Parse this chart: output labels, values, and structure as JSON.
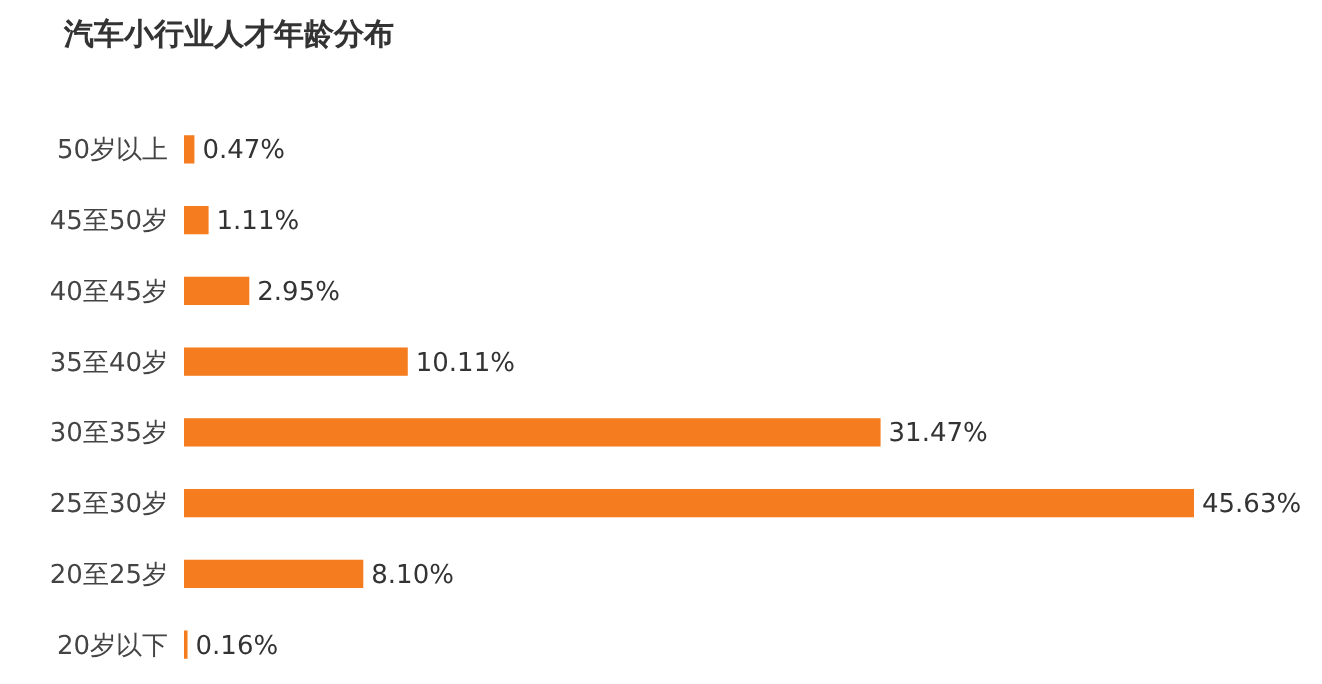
{
  "chart_data": {
    "type": "bar",
    "orientation": "horizontal",
    "title": "汽车小行业人才年龄分布",
    "categories": [
      "50岁以上",
      "45至50岁",
      "40至45岁",
      "35至40岁",
      "30至35岁",
      "25至30岁",
      "20至25岁",
      "20岁以下"
    ],
    "values": [
      0.47,
      1.11,
      2.95,
      10.11,
      31.47,
      45.63,
      8.1,
      0.16
    ],
    "value_labels": [
      "0.47%",
      "1.11%",
      "2.95%",
      "10.11%",
      "31.47%",
      "45.63%",
      "8.10%",
      "0.16%"
    ],
    "color": "#f57d1f"
  }
}
